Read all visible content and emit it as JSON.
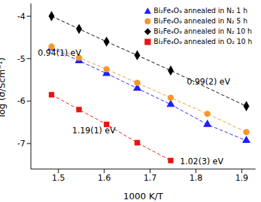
{
  "chart_data": {
    "type": "scatter",
    "x_label": "1000 K/T",
    "y_label": "log (σ/Scm⁻¹)",
    "xlim": [
      1.44,
      1.93
    ],
    "ylim": [
      -7.6,
      -3.7
    ],
    "xticks": [
      1.5,
      1.6,
      1.7,
      1.8,
      1.9
    ],
    "yticks": [
      -7,
      -6,
      -5,
      -4
    ],
    "legend": "upper right",
    "annotations": [
      "0.94(1) eV",
      "0.99(2) eV",
      "1.19(1) eV",
      "1.02(3) eV"
    ],
    "series": [
      {
        "name": "Bi₂Fe₄O₉ annealed in N₂ 1 h",
        "color": "#1f1fff",
        "marker": "triangle",
        "line_style": "dashed",
        "x": [
          1.485,
          1.545,
          1.605,
          1.672,
          1.745,
          1.825,
          1.91
        ],
        "values": [
          -4.75,
          -5.05,
          -5.35,
          -5.7,
          -6.08,
          -6.55,
          -6.93
        ]
      },
      {
        "name": "Bi₂Fe₄O₉ annealed in N₂ 5 h",
        "color": "#f7972b",
        "marker": "circle",
        "line_style": "dashed",
        "x": [
          1.485,
          1.545,
          1.605,
          1.672,
          1.745,
          1.825,
          1.91
        ],
        "values": [
          -4.72,
          -4.98,
          -5.25,
          -5.57,
          -5.92,
          -6.3,
          -6.73
        ]
      },
      {
        "name": "Bi₂Fe₄O₉ annealed in N₂ 10 h",
        "color": "#000000",
        "marker": "diamond",
        "line_style": "dashed",
        "x": [
          1.485,
          1.545,
          1.605,
          1.672,
          1.745,
          1.91
        ],
        "values": [
          -4.0,
          -4.3,
          -4.6,
          -4.92,
          -5.28,
          -6.12
        ]
      },
      {
        "name": "Bi₂Fe₄O₉ annealed in O₂ 10 h",
        "color": "#ee1111",
        "marker": "square",
        "line_style": "dashed",
        "x": [
          1.485,
          1.545,
          1.605,
          1.672,
          1.745
        ],
        "values": [
          -5.85,
          -6.2,
          -6.55,
          -6.98,
          -7.4
        ]
      }
    ]
  }
}
